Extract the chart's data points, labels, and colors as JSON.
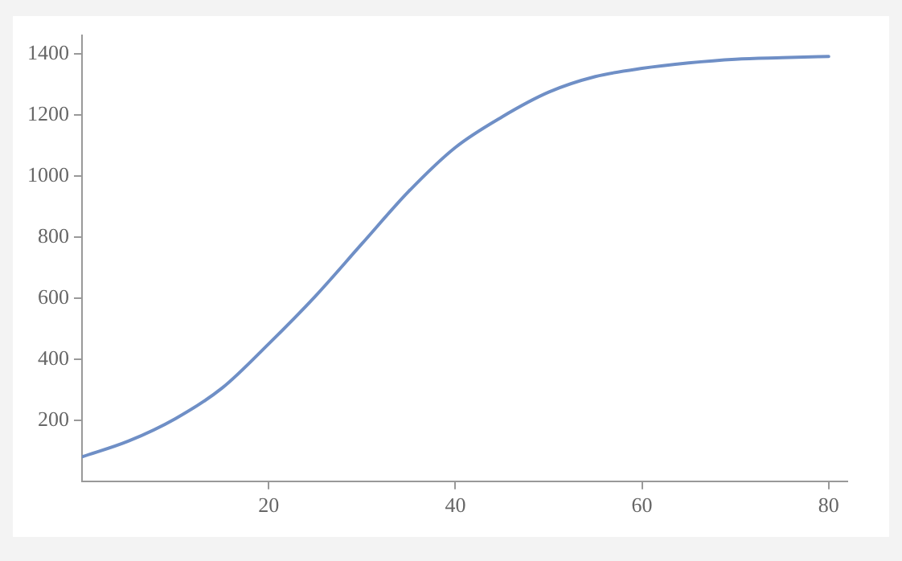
{
  "chart_data": {
    "type": "line",
    "x": [
      0,
      5,
      10,
      15,
      20,
      25,
      30,
      35,
      40,
      45,
      50,
      55,
      60,
      65,
      70,
      75,
      80
    ],
    "series": [
      {
        "color": "#6f8fc6",
        "values": [
          80,
          132,
          205,
          305,
          450,
          606,
          778,
          949,
          1093,
          1193,
          1274,
          1325,
          1352,
          1370,
          1382,
          1387,
          1391
        ]
      }
    ],
    "xlim": [
      0,
      82
    ],
    "xticks": [
      20,
      40,
      60,
      80
    ],
    "ylim": [
      0,
      1460
    ],
    "yticks": [
      200,
      400,
      600,
      800,
      1000,
      1200,
      1400
    ],
    "grid": false,
    "legend": false,
    "marker": "none",
    "line_style": "solid"
  }
}
